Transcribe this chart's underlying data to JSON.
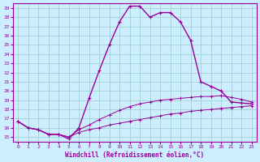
{
  "xlabel": "Windchill (Refroidissement éolien,°C)",
  "bg_color": "#cceeff",
  "line_color": "#990099",
  "grid_color": "#99cccc",
  "xlim": [
    -0.5,
    23.5
  ],
  "ylim": [
    14.5,
    29.5
  ],
  "yticks": [
    15,
    16,
    17,
    18,
    19,
    20,
    21,
    22,
    23,
    24,
    25,
    26,
    27,
    28,
    29
  ],
  "xticks": [
    0,
    1,
    2,
    3,
    4,
    5,
    6,
    7,
    8,
    9,
    10,
    11,
    12,
    13,
    14,
    15,
    16,
    17,
    18,
    19,
    20,
    21,
    22,
    23
  ],
  "s1_x": [
    0,
    1,
    2,
    3,
    4,
    5,
    6,
    7,
    8,
    9,
    10,
    11,
    12,
    13,
    14,
    15,
    16,
    17,
    18,
    19,
    20,
    21,
    22,
    23
  ],
  "s1_y": [
    16.7,
    16.0,
    15.8,
    15.3,
    15.3,
    15.0,
    15.5,
    15.8,
    16.0,
    16.3,
    16.5,
    16.7,
    16.9,
    17.1,
    17.3,
    17.5,
    17.6,
    17.8,
    17.9,
    18.0,
    18.1,
    18.2,
    18.3,
    18.4
  ],
  "s2_x": [
    0,
    1,
    2,
    3,
    4,
    5,
    6,
    7,
    8,
    9,
    10,
    11,
    12,
    13,
    14,
    15,
    16,
    17,
    18,
    19,
    20,
    21,
    22,
    23
  ],
  "s2_y": [
    16.7,
    16.0,
    15.8,
    15.3,
    15.3,
    15.0,
    15.8,
    16.3,
    16.9,
    17.4,
    17.9,
    18.3,
    18.6,
    18.8,
    19.0,
    19.1,
    19.2,
    19.3,
    19.4,
    19.4,
    19.5,
    19.3,
    19.1,
    18.8
  ],
  "s3_x": [
    0,
    1,
    2,
    3,
    4,
    5,
    6,
    7,
    8,
    9,
    10,
    11,
    12,
    13,
    14,
    15,
    16,
    17,
    18,
    19,
    20,
    21,
    22,
    23
  ],
  "s3_y": [
    16.7,
    16.0,
    15.8,
    15.3,
    15.3,
    14.8,
    16.0,
    19.2,
    22.2,
    25.0,
    27.5,
    29.2,
    29.2,
    28.0,
    28.5,
    28.5,
    27.5,
    25.5,
    21.0,
    20.5,
    20.0,
    18.8,
    18.7,
    18.6
  ]
}
